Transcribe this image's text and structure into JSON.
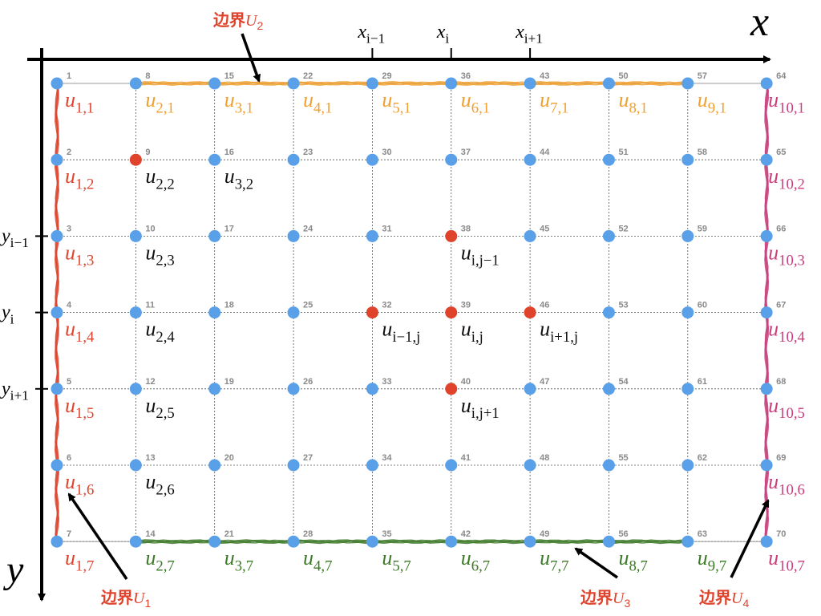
{
  "axes": {
    "x_label": "x",
    "y_label": "y",
    "x_ticks": [
      {
        "base": "x",
        "sub": "i−1"
      },
      {
        "base": "x",
        "sub": "i"
      },
      {
        "base": "x",
        "sub": "i+1"
      }
    ],
    "y_ticks": [
      {
        "base": "y",
        "sub": "i−1"
      },
      {
        "base": "y",
        "sub": "i"
      },
      {
        "base": "y",
        "sub": "i+1"
      }
    ]
  },
  "grid": {
    "columns": 10,
    "rows": 7
  },
  "colors": {
    "node_default": "#5aa0e8",
    "node_highlight": "#e0432c",
    "boundary_left": "#e0432c",
    "boundary_top": "#f0a030",
    "boundary_bottom": "#3d7a28",
    "boundary_right": "#c8407c",
    "label_black": "#111111",
    "node_number": "#8a8a8a"
  },
  "highlighted_nodes": [
    9,
    32,
    38,
    39,
    40,
    46
  ],
  "boundaries": {
    "U1": {
      "prefix": "边界",
      "name": "U",
      "sub": "1"
    },
    "U2": {
      "prefix": "边界",
      "name": "U",
      "sub": "2"
    },
    "U3": {
      "prefix": "边界",
      "name": "U",
      "sub": "3"
    },
    "U4": {
      "prefix": "边界",
      "name": "U",
      "sub": "4"
    }
  },
  "boundary_label_format": {
    "left": "u{1,j}",
    "top": "u{i,1}",
    "bottom": "u{i,7}",
    "right": "u{10,j}"
  },
  "interior_labels": [
    {
      "node": 9,
      "base": "u",
      "sub": "2,2"
    },
    {
      "node": 16,
      "base": "u",
      "sub": "3,2"
    },
    {
      "node": 10,
      "base": "u",
      "sub": "2,3"
    },
    {
      "node": 11,
      "base": "u",
      "sub": "2,4"
    },
    {
      "node": 12,
      "base": "u",
      "sub": "2,5"
    },
    {
      "node": 13,
      "base": "u",
      "sub": "2,6"
    },
    {
      "node": 38,
      "base": "u",
      "sub": "i,j−1"
    },
    {
      "node": 32,
      "base": "u",
      "sub": "i−1,j"
    },
    {
      "node": 39,
      "base": "u",
      "sub": "i,j"
    },
    {
      "node": 46,
      "base": "u",
      "sub": "i+1,j"
    },
    {
      "node": 40,
      "base": "u",
      "sub": "i,j+1"
    }
  ]
}
